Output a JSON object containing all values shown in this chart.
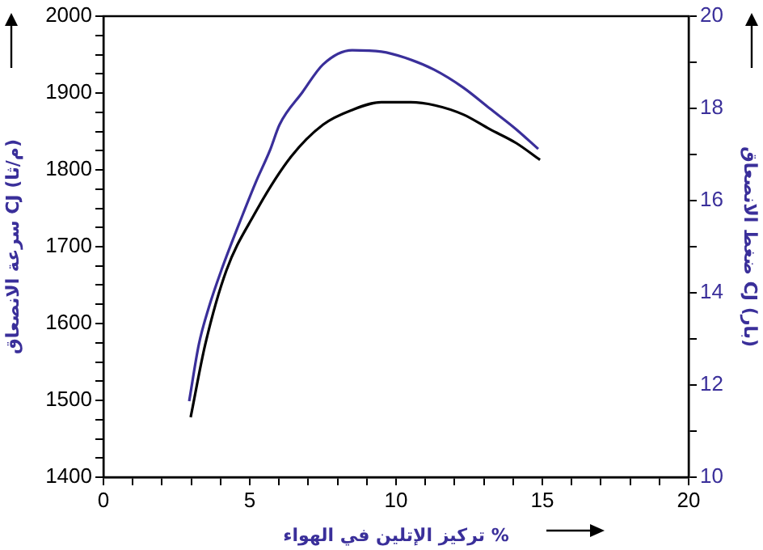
{
  "chart_data": {
    "type": "line",
    "xlabel": "تركيز الإتلين في الهواء %",
    "ylabel": "سرعة الانصعاق CJ (م/ثا)",
    "y2label": "ضغط الانصعاق CJ (بار)",
    "marker": "none",
    "legend": false,
    "grid": false,
    "xlim": [
      0,
      20
    ],
    "xticks": [
      0,
      {
        "value": 1,
        "label": null
      },
      {
        "value": 2,
        "label": null
      },
      {
        "value": 3,
        "label": null
      },
      {
        "value": 4,
        "label": null
      },
      5,
      {
        "value": 6,
        "label": null
      },
      {
        "value": 7,
        "label": null
      },
      {
        "value": 8,
        "label": null
      },
      {
        "value": 9,
        "label": null
      },
      10,
      {
        "value": 11,
        "label": null
      },
      {
        "value": 12,
        "label": null
      },
      {
        "value": 13,
        "label": null
      },
      {
        "value": 14,
        "label": null
      },
      15,
      {
        "value": 16,
        "label": null
      },
      {
        "value": 17,
        "label": null
      },
      {
        "value": 18,
        "label": null
      },
      {
        "value": 19,
        "label": null
      },
      20
    ],
    "ylim": [
      1400,
      2000
    ],
    "yticks": [
      1400,
      {
        "value": 1425,
        "label": null
      },
      {
        "value": 1450,
        "label": null
      },
      {
        "value": 1475,
        "label": null
      },
      1500,
      {
        "value": 1525,
        "label": null
      },
      {
        "value": 1550,
        "label": null
      },
      {
        "value": 1575,
        "label": null
      },
      1600,
      {
        "value": 1625,
        "label": null
      },
      {
        "value": 1650,
        "label": null
      },
      {
        "value": 1675,
        "label": null
      },
      1700,
      {
        "value": 1725,
        "label": null
      },
      {
        "value": 1750,
        "label": null
      },
      {
        "value": 1775,
        "label": null
      },
      1800,
      {
        "value": 1825,
        "label": null
      },
      {
        "value": 1850,
        "label": null
      },
      {
        "value": 1875,
        "label": null
      },
      1900,
      {
        "value": 1925,
        "label": null
      },
      {
        "value": 1950,
        "label": null
      },
      {
        "value": 1975,
        "label": null
      },
      2000
    ],
    "y2lim": [
      10,
      20
    ],
    "y2ticks": [
      10,
      {
        "value": 11,
        "label": null
      },
      12,
      {
        "value": 13,
        "label": null
      },
      14,
      {
        "value": 15,
        "label": null
      },
      16,
      {
        "value": 17,
        "label": null
      },
      18,
      {
        "value": 19,
        "label": null
      },
      20
    ],
    "series": [
      {
        "color": "#000000",
        "axis": "y",
        "x": [
          2.98,
          3.48,
          4.2,
          5.14,
          6.41,
          7.51,
          8.5,
          9.5,
          10.5,
          11.33,
          12.3,
          13.2,
          14.1,
          14.92
        ],
        "values": [
          1478,
          1573,
          1669,
          1741,
          1817,
          1859,
          1878,
          1888,
          1888,
          1884,
          1872,
          1853,
          1835,
          1813
        ]
      },
      {
        "color": "#3a2f9a",
        "axis": "y2",
        "x": [
          2.93,
          3.26,
          3.6,
          4.03,
          4.75,
          5.2,
          5.69,
          6.02,
          6.8,
          7.5,
          8.5,
          9.5,
          10.3,
          11.3,
          12.3,
          13.2,
          14.1,
          14.86
        ],
        "values": [
          11.65,
          12.88,
          13.68,
          14.49,
          15.68,
          16.39,
          17.09,
          17.65,
          18.35,
          18.95,
          19.26,
          19.23,
          19.1,
          18.84,
          18.45,
          18.0,
          17.55,
          17.12
        ]
      }
    ]
  }
}
